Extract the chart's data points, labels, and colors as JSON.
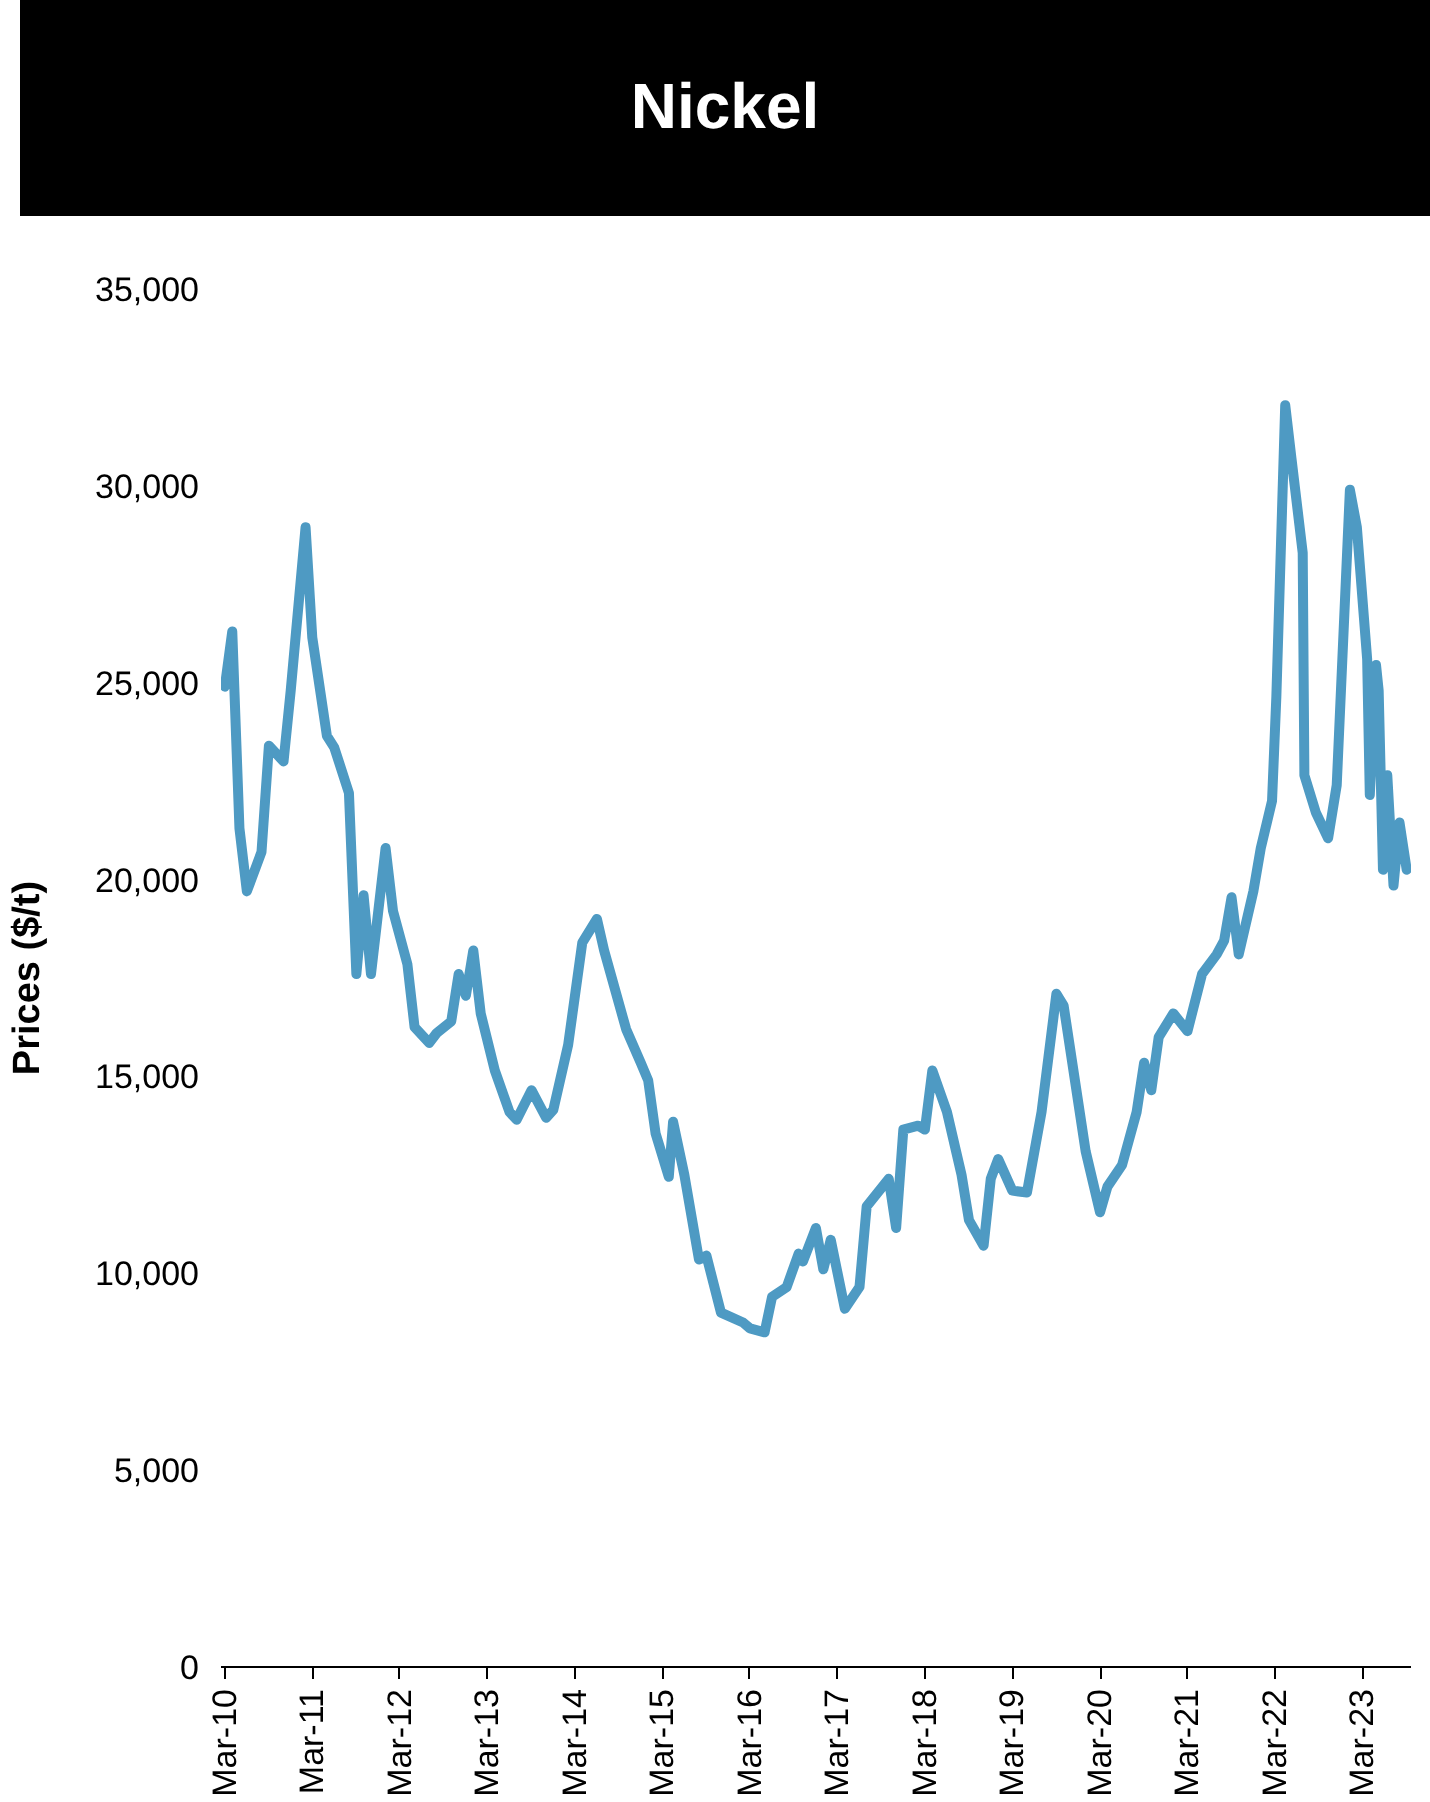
{
  "chart_data": {
    "type": "line",
    "title": "Nickel",
    "ylabel": "Prices ($/t)",
    "x": [
      "2010-03",
      "2010-04",
      "2010-05",
      "2010-06",
      "2010-08",
      "2010-09",
      "2010-11",
      "2010-12",
      "2011-02",
      "2011-03",
      "2011-05",
      "2011-06",
      "2011-08",
      "2011-09",
      "2011-10",
      "2011-11",
      "2012-01",
      "2012-02",
      "2012-04",
      "2012-05",
      "2012-07",
      "2012-08",
      "2012-10",
      "2012-11",
      "2012-12",
      "2013-01",
      "2013-02",
      "2013-04",
      "2013-06",
      "2013-07",
      "2013-09",
      "2013-11",
      "2013-12",
      "2014-02",
      "2014-04",
      "2014-06",
      "2014-07",
      "2014-10",
      "2014-12",
      "2015-01",
      "2015-02",
      "2015-03-28",
      "2015-04-15",
      "2015-06",
      "2015-08",
      "2015-09",
      "2015-11",
      "2016-02",
      "2016-03",
      "2016-05",
      "2016-06",
      "2016-08",
      "2016-09-20",
      "2016-10-08",
      "2016-12",
      "2017-01",
      "2017-02",
      "2017-04",
      "2017-06",
      "2017-07",
      "2017-10",
      "2017-11",
      "2017-12",
      "2018-02",
      "2018-03",
      "2018-04",
      "2018-06",
      "2018-08",
      "2018-09",
      "2018-11",
      "2018-12",
      "2019-01",
      "2019-03",
      "2019-05",
      "2019-07",
      "2019-09",
      "2019-10",
      "2020-01",
      "2020-03",
      "2020-04",
      "2020-06",
      "2020-08",
      "2020-09",
      "2020-10",
      "2020-11",
      "2021-01",
      "2021-03",
      "2021-05",
      "2021-07",
      "2021-08",
      "2021-09",
      "2021-10",
      "2021-12",
      "2022-01",
      "2022-02-17",
      "2022-03-07",
      "2022-04-13",
      "2022-05-09",
      "2022-06-25",
      "2022-07-02",
      "2022-08-19",
      "2022-10-09",
      "2022-11-14",
      "2023-01-08",
      "2023-02-06",
      "2023-03-21",
      "2023-04-01",
      "2023-04-27",
      "2023-05-08",
      "2023-05-26",
      "2023-06-13",
      "2023-07-09",
      "2023-08-03",
      "2023-09-02"
    ],
    "series": [
      {
        "color": "#4e9ac3",
        "values": [
          24900,
          26300,
          21300,
          19700,
          20700,
          23400,
          23000,
          24800,
          28950,
          26150,
          23650,
          23350,
          22200,
          17600,
          19600,
          17600,
          20800,
          19200,
          17850,
          16250,
          15850,
          16100,
          16400,
          17600,
          17050,
          18200,
          16600,
          15150,
          14100,
          13900,
          14650,
          13950,
          14150,
          15800,
          18400,
          19000,
          18200,
          16200,
          15350,
          14900,
          13550,
          12450,
          13850,
          12500,
          10350,
          10450,
          9000,
          8750,
          8600,
          8500,
          9400,
          9650,
          10500,
          10300,
          11150,
          10100,
          10850,
          9100,
          9650,
          11700,
          12400,
          11150,
          13650,
          13750,
          13650,
          15150,
          14100,
          12500,
          11350,
          10700,
          12400,
          12900,
          12100,
          12050,
          14100,
          17100,
          16800,
          13100,
          11550,
          12200,
          12750,
          14100,
          15350,
          14650,
          16000,
          16600,
          16150,
          17600,
          18100,
          18450,
          19550,
          18100,
          19700,
          20800,
          22000,
          24650,
          32050,
          30700,
          28300,
          22650,
          21700,
          21050,
          22400,
          29900,
          28950,
          25600,
          22150,
          25450,
          24800,
          20250,
          22650,
          19850,
          21450,
          20250
        ]
      }
    ],
    "xlim": [
      "2010-02-13",
      "2023-09-20"
    ],
    "xticks": [
      {
        "value": "2010-03",
        "label": "Mar-10"
      },
      {
        "value": "2011-03",
        "label": "Mar-11"
      },
      {
        "value": "2012-03",
        "label": "Mar-12"
      },
      {
        "value": "2013-03",
        "label": "Mar-13"
      },
      {
        "value": "2014-03",
        "label": "Mar-14"
      },
      {
        "value": "2015-03",
        "label": "Mar-15"
      },
      {
        "value": "2016-03",
        "label": "Mar-16"
      },
      {
        "value": "2017-03",
        "label": "Mar-17"
      },
      {
        "value": "2018-03",
        "label": "Mar-18"
      },
      {
        "value": "2019-03",
        "label": "Mar-19"
      },
      {
        "value": "2020-03",
        "label": "Mar-20"
      },
      {
        "value": "2021-03",
        "label": "Mar-21"
      },
      {
        "value": "2022-03",
        "label": "Mar-22"
      },
      {
        "value": "2023-03",
        "label": "Mar-23"
      }
    ],
    "ylim": [
      0,
      35000
    ],
    "yticks": [
      {
        "value": 0,
        "label": "0"
      },
      {
        "value": 5000,
        "label": "5,000"
      },
      {
        "value": 10000,
        "label": "10,000"
      },
      {
        "value": 15000,
        "label": "15,000"
      },
      {
        "value": 20000,
        "label": "20,000"
      },
      {
        "value": 25000,
        "label": "25,000"
      },
      {
        "value": 30000,
        "label": "30,000"
      },
      {
        "value": 35000,
        "label": "35,000"
      }
    ],
    "grid": false,
    "marker": "none",
    "line_style": "solid"
  }
}
